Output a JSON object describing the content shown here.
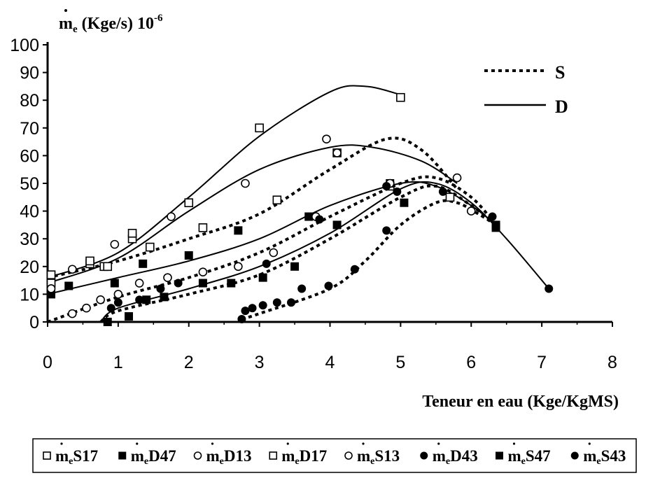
{
  "chart_data": {
    "type": "scatter",
    "title": "",
    "ylabel": "ṁe (Kge/s) 10-6",
    "ylabel_main": "m",
    "ylabel_sub": "e",
    "ylabel_unit": " (Kge/s) 10",
    "ylabel_exp": "-6",
    "xlabel": "Teneur en eau  (Kge/KgMS)",
    "xlim": [
      0,
      8
    ],
    "ylim": [
      0,
      100
    ],
    "x_ticks": [
      "0",
      "1",
      "2",
      "3",
      "4",
      "5",
      "6",
      "7",
      "8"
    ],
    "y_ticks": [
      "0",
      "10",
      "20",
      "30",
      "40",
      "50",
      "60",
      "70",
      "80",
      "90",
      "100"
    ],
    "grid": false,
    "line_legend": [
      {
        "label": "S",
        "style": "dotted"
      },
      {
        "label": "D",
        "style": "solid"
      }
    ],
    "legend_position": "bottom",
    "series": [
      {
        "name": "S17",
        "marker": "open-square",
        "line": "dotted",
        "x": [
          0.05,
          0.6,
          0.8,
          1.2,
          1.45,
          2.2,
          3.25,
          4.1,
          4.85,
          5.7
        ],
        "y": [
          14,
          21,
          20,
          30,
          27,
          34,
          44,
          61,
          49,
          45
        ],
        "fit_x": [
          0,
          1,
          2,
          3,
          4,
          4.8,
          5.3,
          5.8
        ],
        "fit_y": [
          16,
          22,
          30,
          39,
          55,
          66,
          62,
          48
        ]
      },
      {
        "name": "D47",
        "marker": "filled-square",
        "line": "solid",
        "x": [
          0.05,
          0.3,
          0.95,
          1.35,
          2.0,
          2.7,
          3.7,
          4.85,
          6.35
        ],
        "y": [
          10,
          13,
          14,
          21,
          24,
          33,
          38,
          50,
          35
        ],
        "fit_x": [
          0,
          1,
          2,
          3,
          4,
          5,
          5.5,
          6,
          6.35
        ],
        "fit_y": [
          10,
          16,
          22,
          30,
          42,
          50,
          49,
          42,
          35
        ]
      },
      {
        "name": "D13",
        "marker": "open-circle",
        "line": "solid",
        "x": [
          0.05,
          0.35,
          0.95,
          1.75,
          2.8,
          3.95,
          4.1,
          5.8
        ],
        "y": [
          12,
          19,
          28,
          38,
          50,
          66,
          61,
          52
        ],
        "fit_x": [
          0,
          1,
          2,
          3,
          4,
          4.6,
          5.3,
          5.8
        ],
        "fit_y": [
          14,
          23,
          40,
          55,
          63,
          63,
          58,
          50
        ]
      },
      {
        "name": "D17",
        "marker": "open-square",
        "line": "solid",
        "x": [
          0.05,
          0.6,
          0.85,
          1.2,
          2.0,
          3.0,
          5.0
        ],
        "y": [
          17,
          22,
          20,
          32,
          43,
          70,
          81
        ],
        "fit_x": [
          0,
          1,
          2,
          3,
          4,
          4.5,
          5
        ],
        "fit_y": [
          16,
          25,
          45,
          67,
          83,
          85,
          82
        ]
      },
      {
        "name": "S13",
        "marker": "open-circle",
        "line": "dotted",
        "x": [
          0.35,
          0.55,
          0.75,
          1.0,
          1.3,
          1.7,
          2.2,
          2.7,
          3.2,
          3.8,
          4.85,
          6.0
        ],
        "y": [
          3,
          5,
          8,
          10,
          14,
          16,
          18,
          20,
          25,
          38,
          50,
          40
        ],
        "fit_x": [
          0,
          1,
          2,
          3,
          4,
          5,
          5.5,
          6,
          6.35
        ],
        "fit_y": [
          0,
          9,
          16,
          25,
          38,
          50,
          52,
          45,
          35
        ]
      },
      {
        "name": "D43",
        "marker": "filled-circle",
        "line": "solid",
        "x": [
          0.9,
          1.0,
          1.3,
          1.6,
          1.85,
          3.1,
          3.85,
          4.8,
          5.6,
          6.3,
          7.1
        ],
        "y": [
          5,
          7,
          8,
          12,
          14,
          21,
          37,
          49,
          47,
          38,
          12
        ],
        "fit_x": [
          0.75,
          1,
          2,
          3,
          4,
          5,
          5.5,
          6,
          6.5,
          7.1
        ],
        "fit_y": [
          0,
          5,
          12,
          20,
          32,
          48,
          50,
          43,
          30,
          12
        ]
      },
      {
        "name": "S47",
        "marker": "filled-square",
        "line": "dotted",
        "x": [
          0.85,
          1.15,
          1.4,
          1.65,
          2.2,
          2.6,
          3.05,
          3.5,
          4.1,
          5.05,
          6.35
        ],
        "y": [
          0,
          2,
          8,
          9,
          14,
          14,
          16,
          20,
          35,
          43,
          34
        ],
        "fit_x": [
          0.75,
          1,
          2,
          3,
          4,
          5,
          5.5,
          6,
          6.35
        ],
        "fit_y": [
          0,
          4,
          10,
          17,
          30,
          45,
          49,
          42,
          35
        ]
      },
      {
        "name": "S43",
        "marker": "filled-circle",
        "line": "dotted",
        "x": [
          2.75,
          2.8,
          2.9,
          3.05,
          3.25,
          3.45,
          3.6,
          3.98,
          4.35,
          4.8,
          4.95
        ],
        "y": [
          1,
          4,
          5,
          6,
          7,
          7,
          12,
          13,
          19,
          33,
          47
        ],
        "fit_x": [
          2.75,
          3,
          4,
          4.5,
          5,
          5.5,
          5.8,
          6.1,
          6.35
        ],
        "fit_y": [
          1,
          3,
          12,
          22,
          35,
          43,
          43,
          39,
          35
        ]
      }
    ]
  }
}
